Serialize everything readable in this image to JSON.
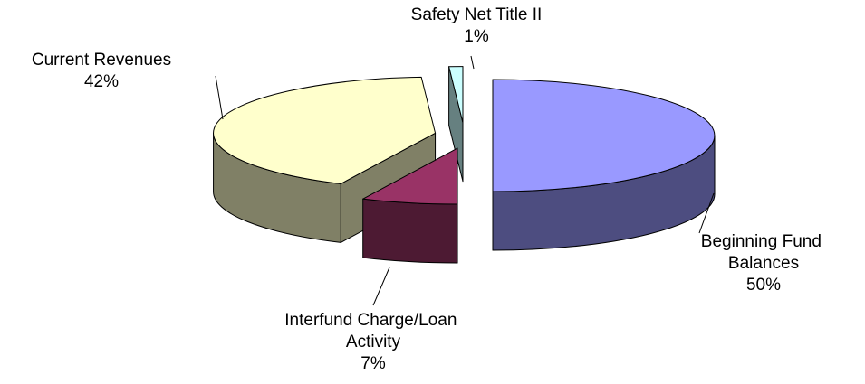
{
  "chart_data": {
    "type": "pie",
    "categories": [
      "Beginning Fund Balances",
      "Interfund Charge/Loan Activity",
      "Current Revenues",
      "Safety Net Title II"
    ],
    "values": [
      50,
      7,
      42,
      1
    ],
    "value_labels": [
      "50%",
      "7%",
      "42%",
      "1%"
    ],
    "colors": [
      "#9999ff",
      "#993366",
      "#ffffcc",
      "#ccffff"
    ]
  }
}
